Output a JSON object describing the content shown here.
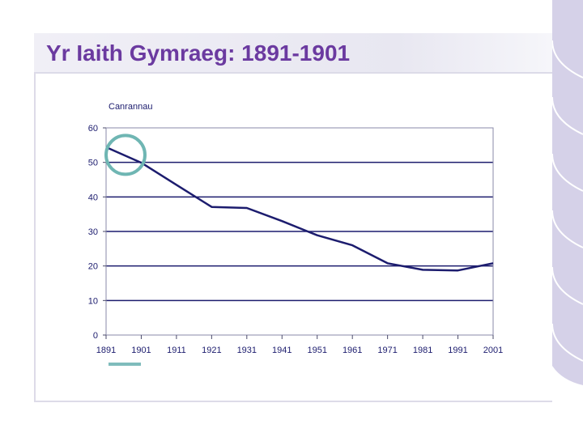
{
  "slide": {
    "title": "Yr Iaith Gymraeg: 1891-1901"
  },
  "colors": {
    "title": "#6b3aa0",
    "line": "#1c1c6e",
    "gridline": "#1c1c6e",
    "highlight_circle": "#6fb6b3",
    "legend_swatch": "#7fbcbc",
    "deco": "#d5d1e8"
  },
  "chart_data": {
    "type": "line",
    "ylabel": "Canrannau",
    "xlabel": "",
    "ylim": [
      0,
      60
    ],
    "yticks": [
      0,
      10,
      20,
      30,
      40,
      50,
      60
    ],
    "xlim": [
      1891,
      2001
    ],
    "xticks": [
      1891,
      1901,
      1911,
      1921,
      1931,
      1941,
      1951,
      1961,
      1971,
      1981,
      1991,
      2001
    ],
    "grid": true,
    "legend": "bottom-left",
    "series": [
      {
        "x": [
          1891,
          1901,
          1911,
          1921,
          1931,
          1941,
          1951,
          1961,
          1971,
          1981,
          1991,
          2001
        ],
        "values": [
          54.4,
          49.9,
          43.5,
          37.1,
          36.8,
          33.0,
          28.9,
          26.0,
          20.8,
          18.9,
          18.7,
          20.8
        ]
      }
    ],
    "highlight": {
      "x": 1891,
      "y": 51,
      "shape": "circle"
    }
  }
}
